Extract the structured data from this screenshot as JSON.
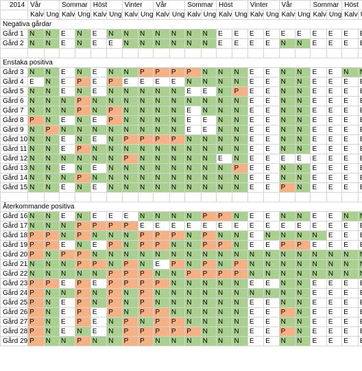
{
  "colors": {
    "N": "#a9d08e",
    "P": "#f4b183",
    "E": "#ffffff"
  },
  "header": {
    "year": "2014",
    "seasons": [
      "Vår",
      "Sommar",
      "Höst",
      "Vinter",
      "Vår",
      "Sommar",
      "Höst",
      "Vinter",
      "Vår",
      "Sommar",
      "Höst"
    ],
    "sub_labels": [
      "Kalv",
      "Ung"
    ]
  },
  "rows": [
    {
      "type": "section",
      "title": "Negativa gårdar"
    },
    {
      "type": "farm",
      "name": "Gård 1",
      "values": [
        "N",
        "N",
        "E",
        "N",
        "E",
        "N",
        "N",
        "N",
        "N",
        "N",
        "N",
        "N",
        "E",
        "E",
        "E",
        "E",
        "E",
        "E",
        "E",
        "E",
        "E",
        "E"
      ]
    },
    {
      "type": "farm",
      "name": "Gård 2",
      "values": [
        "N",
        "N",
        "E",
        "N",
        "E",
        "E",
        "N",
        "N",
        "N",
        "N",
        "N",
        "N",
        "E",
        "E",
        "E",
        "E",
        "N",
        "N",
        "E",
        "E",
        "E",
        "E"
      ]
    },
    {
      "type": "blank"
    },
    {
      "type": "section",
      "title": "Enstaka positiva"
    },
    {
      "type": "farm",
      "name": "Gård 3",
      "values": [
        "N",
        "N",
        "E",
        "N",
        "E",
        "N",
        "N",
        "P",
        "P",
        "P",
        "P",
        "N",
        "N",
        "N",
        "E",
        "E",
        "N",
        "N",
        "E",
        "E",
        "N",
        "N"
      ]
    },
    {
      "type": "farm",
      "name": "Gård 4",
      "values": [
        "E",
        "N",
        "E",
        "P",
        "E",
        "P",
        "E",
        "E",
        "E",
        "E",
        "N",
        "N",
        "N",
        "N",
        "E",
        "E",
        "N",
        "N",
        "E",
        "E",
        "E",
        "E"
      ]
    },
    {
      "type": "farm",
      "name": "Gård 5",
      "values": [
        "N",
        "N",
        "E",
        "N",
        "E",
        "N",
        "N",
        "N",
        "N",
        "N",
        "E",
        "E",
        "N",
        "P",
        "E",
        "E",
        "N",
        "N",
        "E",
        "E",
        "E",
        "E"
      ]
    },
    {
      "type": "farm",
      "name": "Gård 6",
      "values": [
        "N",
        "N",
        "N",
        "P",
        "N",
        "N",
        "N",
        "N",
        "N",
        "N",
        "N",
        "N",
        "N",
        "N",
        "E",
        "E",
        "N",
        "N",
        "E",
        "E",
        "E",
        "E"
      ]
    },
    {
      "type": "farm",
      "name": "Gård 7",
      "values": [
        "N",
        "N",
        "N",
        "P",
        "N",
        "P",
        "N",
        "N",
        "N",
        "N",
        "E",
        "N",
        "N",
        "N",
        "E",
        "E",
        "N",
        "N",
        "E",
        "E",
        "E",
        "E"
      ]
    },
    {
      "type": "farm",
      "name": "Gård 8",
      "values": [
        "P",
        "N",
        "E",
        "N",
        "E",
        "P",
        "N",
        "N",
        "N",
        "N",
        "E",
        "E",
        "N",
        "N",
        "E",
        "E",
        "N",
        "N",
        "E",
        "E",
        "E",
        "E"
      ]
    },
    {
      "type": "farm",
      "name": "Gård 9",
      "values": [
        "N",
        "P",
        "N",
        "N",
        "N",
        "N",
        "N",
        "N",
        "N",
        "N",
        "E",
        "E",
        "N",
        "N",
        "E",
        "E",
        "N",
        "N",
        "E",
        "E",
        "E",
        "E"
      ]
    },
    {
      "type": "farm",
      "name": "Gård 10",
      "values": [
        "N",
        "N",
        "E",
        "N",
        "E",
        "N",
        "P",
        "P",
        "P",
        "P",
        "N",
        "N",
        "N",
        "N",
        "E",
        "E",
        "N",
        "N",
        "E",
        "E",
        "E",
        "E"
      ]
    },
    {
      "type": "farm",
      "name": "Gård 11",
      "values": [
        "N",
        "N",
        "E",
        "P",
        "N",
        "N",
        "N",
        "N",
        "N",
        "N",
        "N",
        "N",
        "N",
        "N",
        "E",
        "E",
        "N",
        "N",
        "E",
        "E",
        "E",
        "E"
      ]
    },
    {
      "type": "farm",
      "name": "Gård 12",
      "values": [
        "N",
        "N",
        "N",
        "N",
        "N",
        "N",
        "P",
        "N",
        "N",
        "N",
        "N",
        "N",
        "E",
        "N",
        "E",
        "E",
        "E",
        "E",
        "E",
        "E",
        "E",
        "E"
      ]
    },
    {
      "type": "farm",
      "name": "Gård 13",
      "values": [
        "N",
        "N",
        "E",
        "N",
        "E",
        "N",
        "N",
        "N",
        "N",
        "N",
        "N",
        "N",
        "N",
        "P",
        "E",
        "E",
        "N",
        "N",
        "E",
        "E",
        "E",
        "E"
      ]
    },
    {
      "type": "farm",
      "name": "Gård 14",
      "values": [
        "N",
        "N",
        "N",
        "P",
        "N",
        "N",
        "N",
        "N",
        "N",
        "N",
        "N",
        "N",
        "N",
        "N",
        "E",
        "E",
        "N",
        "N",
        "E",
        "E",
        "E",
        "E"
      ]
    },
    {
      "type": "farm",
      "name": "Gård 15",
      "values": [
        "N",
        "N",
        "E",
        "N",
        "E",
        "N",
        "N",
        "N",
        "N",
        "N",
        "N",
        "N",
        "N",
        "N",
        "E",
        "E",
        "P",
        "N",
        "E",
        "E",
        "E",
        "E"
      ]
    },
    {
      "type": "blank"
    },
    {
      "type": "section",
      "title": "Återkommande positiva"
    },
    {
      "type": "farm",
      "name": "Gård 16",
      "values": [
        "N",
        "N",
        "E",
        "N",
        "E",
        "E",
        "E",
        "N",
        "N",
        "N",
        "N",
        "P",
        "P",
        "N",
        "E",
        "E",
        "N",
        "N",
        "E",
        "E",
        "N",
        "N"
      ]
    },
    {
      "type": "farm",
      "name": "Gård 17",
      "values": [
        "N",
        "N",
        "N",
        "P",
        "P",
        "P",
        "P",
        "E",
        "E",
        "E",
        "E",
        "E",
        "E",
        "E",
        "E",
        "E",
        "E",
        "E",
        "E",
        "E",
        "E",
        "E"
      ]
    },
    {
      "type": "farm",
      "name": "Gård 18",
      "values": [
        "P",
        "P",
        "N",
        "P",
        "N",
        "N",
        "N",
        "P",
        "P",
        "P",
        "N",
        "P",
        "N",
        "N",
        "E",
        "N",
        "N",
        "N",
        "N",
        "E",
        "E",
        "E"
      ]
    },
    {
      "type": "farm",
      "name": "Gård 19",
      "values": [
        "P",
        "P",
        "E",
        "N",
        "E",
        "P",
        "N",
        "P",
        "P",
        "N",
        "N",
        "P",
        "P",
        "N",
        "E",
        "E",
        "P",
        "P",
        "E",
        "E",
        "E",
        "E"
      ]
    },
    {
      "type": "farm",
      "name": "Gård 20",
      "values": [
        "P",
        "N",
        "P",
        "P",
        "N",
        "N",
        "N",
        "N",
        "N",
        "N",
        "N",
        "N",
        "N",
        "N",
        "N",
        "N",
        "N",
        "N",
        "N",
        "N",
        "N",
        "N"
      ]
    },
    {
      "type": "farm",
      "name": "Gård 21",
      "values": [
        "N",
        "N",
        "N",
        "P",
        "P",
        "N",
        "P",
        "N",
        "E",
        "P",
        "N",
        "P",
        "N",
        "P",
        "N",
        "N",
        "N",
        "N",
        "N",
        "N",
        "N",
        "N"
      ]
    },
    {
      "type": "farm",
      "name": "Gård 22",
      "values": [
        "N",
        "N",
        "N",
        "N",
        "N",
        "P",
        "P",
        "P",
        "N",
        "N",
        "P",
        "P",
        "P",
        "P",
        "N",
        "N",
        "N",
        "N",
        "N",
        "N",
        "N",
        "N"
      ]
    },
    {
      "type": "farm",
      "name": "Gård 23",
      "values": [
        "P",
        "P",
        "E",
        "P",
        "E",
        "P",
        "P",
        "P",
        "P",
        "N",
        "N",
        "N",
        "N",
        "N",
        "E",
        "E",
        "N",
        "N",
        "E",
        "E",
        "E",
        "E"
      ]
    },
    {
      "type": "farm",
      "name": "Gård 24",
      "values": [
        "P",
        "N",
        "N",
        "P",
        "N",
        "P",
        "N",
        "P",
        "N",
        "N",
        "N",
        "N",
        "N",
        "N",
        "N",
        "N",
        "N",
        "N",
        "E",
        "E",
        "E",
        "E"
      ]
    },
    {
      "type": "farm",
      "name": "Gård 25",
      "values": [
        "P",
        "N",
        "E",
        "P",
        "N",
        "P",
        "N",
        "P",
        "N",
        "N",
        "N",
        "N",
        "N",
        "N",
        "E",
        "E",
        "N",
        "N",
        "E",
        "E",
        "E",
        "E"
      ]
    },
    {
      "type": "farm",
      "name": "Gård 26",
      "values": [
        "P",
        "N",
        "E",
        "P",
        "E",
        "P",
        "N",
        "P",
        "P",
        "N",
        "N",
        "N",
        "N",
        "N",
        "E",
        "E",
        "P",
        "N",
        "E",
        "E",
        "E",
        "E"
      ]
    },
    {
      "type": "farm",
      "name": "Gård 27",
      "values": [
        "P",
        "N",
        "E",
        "P",
        "E",
        "N",
        "P",
        "N",
        "P",
        "P",
        "N",
        "N",
        "N",
        "N",
        "E",
        "E",
        "N",
        "N",
        "E",
        "E",
        "E",
        "E"
      ]
    },
    {
      "type": "farm",
      "name": "Gård 28",
      "values": [
        "P",
        "N",
        "E",
        "N",
        "E",
        "N",
        "P",
        "P",
        "P",
        "P",
        "P",
        "N",
        "N",
        "N",
        "E",
        "E",
        "P",
        "N",
        "E",
        "E",
        "E",
        "E"
      ]
    },
    {
      "type": "farm",
      "name": "Gård 29",
      "values": [
        "P",
        "N",
        "N",
        "P",
        "N",
        "N",
        "P",
        "P",
        "N",
        "N",
        "N",
        "N",
        "N",
        "N",
        "E",
        "E",
        "N",
        "N",
        "E",
        "E",
        "E",
        "E"
      ]
    }
  ]
}
